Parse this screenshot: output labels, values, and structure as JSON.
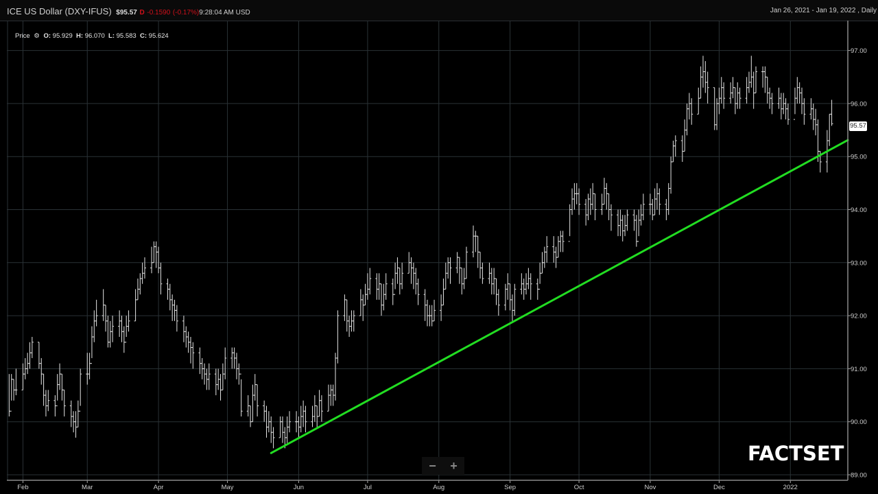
{
  "header": {
    "title": "ICE US Dollar (DXY-IFUS)",
    "last_price": "$95.57",
    "direction_flag": "D",
    "change": "-0.1590",
    "change_pct": "(-0.17%)",
    "time": "9:28:04 AM USD",
    "date_range": "Jan 26, 2021 - Jan 19, 2022 , Daily"
  },
  "legend": {
    "label": "Price",
    "icon": "gear-icon",
    "open_label": "O:",
    "open": "95.929",
    "high_label": "H:",
    "high": "96.070",
    "low_label": "L:",
    "low": "95.583",
    "close_label": "C:",
    "close": "95.624"
  },
  "last_price_label": "95.57",
  "zoom_controls": {
    "minus": "−",
    "plus": "+"
  },
  "logo": "FACTSET",
  "colors": {
    "background": "#000000",
    "bars": "#e6e6e6",
    "grid": "#2a3236",
    "trendline": "#22dd22",
    "negative": "#d0101a"
  },
  "chart_data": {
    "type": "ohlc",
    "title": "ICE US Dollar (DXY-IFUS)",
    "frequency": "Daily",
    "xlim": [
      "2021-01-25",
      "2022-01-26"
    ],
    "ylim": [
      89,
      97.5
    ],
    "grid": true,
    "y_axis_position": "right",
    "y_ticks": [
      "89.00",
      "90.00",
      "91.00",
      "92.00",
      "93.00",
      "94.00",
      "95.00",
      "96.00",
      "97.00"
    ],
    "x_ticks": [
      {
        "label": "Feb",
        "date": "2021-02-01"
      },
      {
        "label": "Mar",
        "date": "2021-03-01"
      },
      {
        "label": "Apr",
        "date": "2021-04-01"
      },
      {
        "label": "May",
        "date": "2021-05-01"
      },
      {
        "label": "Jun",
        "date": "2021-06-01"
      },
      {
        "label": "Jul",
        "date": "2021-07-01"
      },
      {
        "label": "Aug",
        "date": "2021-08-01"
      },
      {
        "label": "Sep",
        "date": "2021-09-01"
      },
      {
        "label": "Oct",
        "date": "2021-10-01"
      },
      {
        "label": "Nov",
        "date": "2021-11-01"
      },
      {
        "label": "Dec",
        "date": "2021-12-01"
      },
      {
        "label": "2022",
        "date": "2022-01-01"
      }
    ],
    "first_bar_date": "2021-01-26",
    "bar_fields": [
      "high",
      "low",
      "close"
    ],
    "bars": [
      [
        90.9,
        90.1,
        90.2
      ],
      [
        90.9,
        90.4,
        90.8
      ],
      [
        90.8,
        90.4,
        90.6
      ],
      [
        91.0,
        90.5,
        90.6
      ],
      [
        91.1,
        90.6,
        90.9
      ],
      [
        91.2,
        90.8,
        91.0
      ],
      [
        91.3,
        90.9,
        91.1
      ],
      [
        91.5,
        91.0,
        91.3
      ],
      [
        91.6,
        91.2,
        91.5
      ],
      [
        91.5,
        91.0,
        91.1
      ],
      [
        91.2,
        90.7,
        90.9
      ],
      [
        90.9,
        90.3,
        90.5
      ],
      [
        90.6,
        90.1,
        90.3
      ],
      [
        90.6,
        90.2,
        90.4
      ],
      [
        90.5,
        90.1,
        90.3
      ],
      [
        90.9,
        90.4,
        90.7
      ],
      [
        91.1,
        90.6,
        90.9
      ],
      [
        90.9,
        90.4,
        90.6
      ],
      [
        90.6,
        90.1,
        90.3
      ],
      [
        90.4,
        89.9,
        90.1
      ],
      [
        90.2,
        89.8,
        90.0
      ],
      [
        90.2,
        89.7,
        89.9
      ],
      [
        90.4,
        89.9,
        90.2
      ],
      [
        91.0,
        90.3,
        90.9
      ],
      [
        91.3,
        90.7,
        90.9
      ],
      [
        91.3,
        90.8,
        91.1
      ],
      [
        91.8,
        91.2,
        91.6
      ],
      [
        92.1,
        91.5,
        91.9
      ],
      [
        92.3,
        91.8,
        92.0
      ],
      [
        92.5,
        91.9,
        92.2
      ],
      [
        92.2,
        91.7,
        91.9
      ],
      [
        92.0,
        91.4,
        91.5
      ],
      [
        91.9,
        91.4,
        91.7
      ],
      [
        92.0,
        91.5,
        91.8
      ],
      [
        92.1,
        91.6,
        91.9
      ],
      [
        92.0,
        91.5,
        91.7
      ],
      [
        91.8,
        91.3,
        91.5
      ],
      [
        92.0,
        91.6,
        91.8
      ],
      [
        92.1,
        91.7,
        91.9
      ],
      [
        92.5,
        91.9,
        92.3
      ],
      [
        92.7,
        92.3,
        92.5
      ],
      [
        92.8,
        92.4,
        92.7
      ],
      [
        93.0,
        92.6,
        92.8
      ],
      [
        93.1,
        92.7,
        92.9
      ],
      [
        93.3,
        92.8,
        93.0
      ],
      [
        93.4,
        93.0,
        93.3
      ],
      [
        93.4,
        92.9,
        93.2
      ],
      [
        93.3,
        92.8,
        92.9
      ],
      [
        93.0,
        92.4,
        92.6
      ],
      [
        92.7,
        92.3,
        92.5
      ],
      [
        92.6,
        92.1,
        92.3
      ],
      [
        92.4,
        91.9,
        92.2
      ],
      [
        92.3,
        91.9,
        92.1
      ],
      [
        92.2,
        91.7,
        91.9
      ],
      [
        92.0,
        91.5,
        91.7
      ],
      [
        91.8,
        91.4,
        91.6
      ],
      [
        91.7,
        91.3,
        91.5
      ],
      [
        91.6,
        91.1,
        91.4
      ],
      [
        91.5,
        91.0,
        91.3
      ],
      [
        91.4,
        90.9,
        91.1
      ],
      [
        91.2,
        90.8,
        91.0
      ],
      [
        91.1,
        90.7,
        90.9
      ],
      [
        91.0,
        90.6,
        90.8
      ],
      [
        91.1,
        90.6,
        90.9
      ],
      [
        91.0,
        90.5,
        90.7
      ],
      [
        91.0,
        90.6,
        90.8
      ],
      [
        90.9,
        90.4,
        90.6
      ],
      [
        91.1,
        90.6,
        90.9
      ],
      [
        91.4,
        90.8,
        91.2
      ],
      [
        91.4,
        91.0,
        91.3
      ],
      [
        91.4,
        91.0,
        91.2
      ],
      [
        91.3,
        90.8,
        91.0
      ],
      [
        91.1,
        90.7,
        90.9
      ],
      [
        90.8,
        90.1,
        90.2
      ],
      [
        90.5,
        90.1,
        90.3
      ],
      [
        90.3,
        89.9,
        90.0
      ],
      [
        90.7,
        90.0,
        90.5
      ],
      [
        90.9,
        90.4,
        90.7
      ],
      [
        90.7,
        90.1,
        90.3
      ],
      [
        90.4,
        90.0,
        90.2
      ],
      [
        90.3,
        89.7,
        89.9
      ],
      [
        90.2,
        89.8,
        90.0
      ],
      [
        90.1,
        89.6,
        89.8
      ],
      [
        89.9,
        89.5,
        89.7
      ],
      [
        90.1,
        89.7,
        90.0
      ],
      [
        90.1,
        89.6,
        89.8
      ],
      [
        89.9,
        89.5,
        89.7
      ],
      [
        90.1,
        89.6,
        89.9
      ],
      [
        90.2,
        89.8,
        90.0
      ],
      [
        90.2,
        89.8,
        90.0
      ],
      [
        90.1,
        89.7,
        89.9
      ],
      [
        90.3,
        89.8,
        90.1
      ],
      [
        90.4,
        89.9,
        90.2
      ],
      [
        90.3,
        89.8,
        90.0
      ],
      [
        90.3,
        89.9,
        90.1
      ],
      [
        90.5,
        90.0,
        90.3
      ],
      [
        90.3,
        89.9,
        90.1
      ],
      [
        90.6,
        90.1,
        90.4
      ],
      [
        90.5,
        90.0,
        90.2
      ],
      [
        90.7,
        90.2,
        90.5
      ],
      [
        90.7,
        90.3,
        90.6
      ],
      [
        90.7,
        90.3,
        90.5
      ],
      [
        91.3,
        90.4,
        91.2
      ],
      [
        92.1,
        91.1,
        92.0
      ],
      [
        92.4,
        91.9,
        92.3
      ],
      [
        92.3,
        91.7,
        91.9
      ],
      [
        92.0,
        91.6,
        91.8
      ],
      [
        92.1,
        91.7,
        91.9
      ],
      [
        92.1,
        91.7,
        92.0
      ],
      [
        92.5,
        92.0,
        92.3
      ],
      [
        92.4,
        91.9,
        92.2
      ],
      [
        92.6,
        92.2,
        92.4
      ],
      [
        92.8,
        92.3,
        92.5
      ],
      [
        92.9,
        92.4,
        92.7
      ],
      [
        92.8,
        92.3,
        92.5
      ],
      [
        92.8,
        92.3,
        92.6
      ],
      [
        92.6,
        92.0,
        92.2
      ],
      [
        92.6,
        92.1,
        92.4
      ],
      [
        92.8,
        92.3,
        92.6
      ],
      [
        92.7,
        92.2,
        92.4
      ],
      [
        93.0,
        92.5,
        92.8
      ],
      [
        93.1,
        92.6,
        92.9
      ],
      [
        92.9,
        92.4,
        92.6
      ],
      [
        93.0,
        92.5,
        92.8
      ],
      [
        93.2,
        92.8,
        93.0
      ],
      [
        93.1,
        92.6,
        92.9
      ],
      [
        93.0,
        92.5,
        92.8
      ],
      [
        92.9,
        92.4,
        92.6
      ],
      [
        92.7,
        92.2,
        92.4
      ],
      [
        92.5,
        91.9,
        92.2
      ],
      [
        92.3,
        91.8,
        92.0
      ],
      [
        92.2,
        91.8,
        92.0
      ],
      [
        92.2,
        91.8,
        91.9
      ],
      [
        92.3,
        91.9,
        92.1
      ],
      [
        92.4,
        91.9,
        92.2
      ],
      [
        92.7,
        92.2,
        92.5
      ],
      [
        93.0,
        92.5,
        92.8
      ],
      [
        93.1,
        92.7,
        93.0
      ],
      [
        93.1,
        92.6,
        92.9
      ],
      [
        93.2,
        92.8,
        93.1
      ],
      [
        93.1,
        92.6,
        92.9
      ],
      [
        92.9,
        92.4,
        92.6
      ],
      [
        92.9,
        92.5,
        92.7
      ],
      [
        93.3,
        92.7,
        93.2
      ],
      [
        93.7,
        93.1,
        93.5
      ],
      [
        93.6,
        93.2,
        93.5
      ],
      [
        93.5,
        92.9,
        93.2
      ],
      [
        93.2,
        92.7,
        92.9
      ],
      [
        93.0,
        92.6,
        92.7
      ],
      [
        93.0,
        92.6,
        92.8
      ],
      [
        92.9,
        92.4,
        92.6
      ],
      [
        92.9,
        92.4,
        92.7
      ],
      [
        92.7,
        92.2,
        92.4
      ],
      [
        92.5,
        92.0,
        92.2
      ],
      [
        92.6,
        92.1,
        92.5
      ],
      [
        92.8,
        92.3,
        92.6
      ],
      [
        92.6,
        92.1,
        92.3
      ],
      [
        92.4,
        91.9,
        92.1
      ],
      [
        92.6,
        92.0,
        92.5
      ],
      [
        92.8,
        92.4,
        92.6
      ],
      [
        92.7,
        92.3,
        92.5
      ],
      [
        92.8,
        92.4,
        92.6
      ],
      [
        92.9,
        92.5,
        92.7
      ],
      [
        92.8,
        92.3,
        92.6
      ],
      [
        92.7,
        92.3,
        92.5
      ],
      [
        93.0,
        92.6,
        92.8
      ],
      [
        93.2,
        92.8,
        93.0
      ],
      [
        93.3,
        92.9,
        93.2
      ],
      [
        93.5,
        93.0,
        93.3
      ],
      [
        93.5,
        93.0,
        93.2
      ],
      [
        93.3,
        92.9,
        93.1
      ],
      [
        93.5,
        93.1,
        93.4
      ],
      [
        93.6,
        93.2,
        93.5
      ],
      [
        93.6,
        93.2,
        93.4
      ],
      [
        94.1,
        93.5,
        94.0
      ],
      [
        94.4,
        93.9,
        94.2
      ],
      [
        94.5,
        94.0,
        94.3
      ],
      [
        94.5,
        94.1,
        94.3
      ],
      [
        94.4,
        93.9,
        94.1
      ],
      [
        94.2,
        93.7,
        93.9
      ],
      [
        94.3,
        93.8,
        94.2
      ],
      [
        94.4,
        93.9,
        94.1
      ],
      [
        94.5,
        94.0,
        94.3
      ],
      [
        94.3,
        93.8,
        94.0
      ],
      [
        94.3,
        93.9,
        94.1
      ],
      [
        94.6,
        94.1,
        94.4
      ],
      [
        94.5,
        94.0,
        94.3
      ],
      [
        94.3,
        93.8,
        94.0
      ],
      [
        94.1,
        93.6,
        93.9
      ],
      [
        94.0,
        93.5,
        93.7
      ],
      [
        94.0,
        93.5,
        93.8
      ],
      [
        93.9,
        93.4,
        93.6
      ],
      [
        93.9,
        93.5,
        93.7
      ],
      [
        94.0,
        93.6,
        93.9
      ],
      [
        94.0,
        93.6,
        93.8
      ],
      [
        93.9,
        93.3,
        93.4
      ],
      [
        94.0,
        93.5,
        93.8
      ],
      [
        94.1,
        93.7,
        93.9
      ],
      [
        94.3,
        93.8,
        94.1
      ],
      [
        94.3,
        93.9,
        94.1
      ],
      [
        94.2,
        93.8,
        93.9
      ],
      [
        94.4,
        93.9,
        94.2
      ],
      [
        94.5,
        94.0,
        94.3
      ],
      [
        94.4,
        93.9,
        94.1
      ],
      [
        94.2,
        93.8,
        94.0
      ],
      [
        94.5,
        93.9,
        94.4
      ],
      [
        95.0,
        94.3,
        94.9
      ],
      [
        95.3,
        94.9,
        95.2
      ],
      [
        95.4,
        95.0,
        95.3
      ],
      [
        95.4,
        94.9,
        95.1
      ],
      [
        95.7,
        95.1,
        95.5
      ],
      [
        96.0,
        95.4,
        95.9
      ],
      [
        96.2,
        95.7,
        96.0
      ],
      [
        96.1,
        95.6,
        95.8
      ],
      [
        96.3,
        95.8,
        96.1
      ],
      [
        96.7,
        96.1,
        96.5
      ],
      [
        96.9,
        96.3,
        96.6
      ],
      [
        96.8,
        96.2,
        96.4
      ],
      [
        96.6,
        96.0,
        96.3
      ],
      [
        96.3,
        95.5,
        95.6
      ],
      [
        96.1,
        95.5,
        96.0
      ],
      [
        96.3,
        95.8,
        96.1
      ],
      [
        96.5,
        96.0,
        96.3
      ],
      [
        96.4,
        95.9,
        96.1
      ],
      [
        96.4,
        96.0,
        96.2
      ],
      [
        96.5,
        96.1,
        96.3
      ],
      [
        96.3,
        95.8,
        96.0
      ],
      [
        96.4,
        95.9,
        96.2
      ],
      [
        96.3,
        95.9,
        96.1
      ],
      [
        96.5,
        96.0,
        96.3
      ],
      [
        96.6,
        96.2,
        96.4
      ],
      [
        96.9,
        96.3,
        96.5
      ],
      [
        96.6,
        95.9,
        96.2
      ],
      [
        96.7,
        96.2,
        96.6
      ],
      [
        96.7,
        96.3,
        96.6
      ],
      [
        96.7,
        96.2,
        96.5
      ],
      [
        96.5,
        96.0,
        96.2
      ],
      [
        96.3,
        95.9,
        96.1
      ],
      [
        96.2,
        95.8,
        96.0
      ],
      [
        96.3,
        95.9,
        96.1
      ],
      [
        96.2,
        95.7,
        95.9
      ],
      [
        96.2,
        95.8,
        96.0
      ],
      [
        96.1,
        95.7,
        95.9
      ],
      [
        96.0,
        95.6,
        95.7
      ],
      [
        96.3,
        95.8,
        96.1
      ],
      [
        96.5,
        96.0,
        96.3
      ],
      [
        96.4,
        96.0,
        96.2
      ],
      [
        96.3,
        95.8,
        96.0
      ],
      [
        96.1,
        95.6,
        95.8
      ],
      [
        96.1,
        95.7,
        95.9
      ],
      [
        96.0,
        95.5,
        95.7
      ],
      [
        95.9,
        95.4,
        95.6
      ],
      [
        95.7,
        94.9,
        95.1
      ],
      [
        95.1,
        94.7,
        94.9
      ],
      [
        95.5,
        94.7,
        95.3
      ],
      [
        95.8,
        95.2,
        95.8
      ],
      [
        96.07,
        95.58,
        95.62
      ]
    ],
    "annotations": [
      {
        "type": "trendline",
        "from": [
          "2021-05-20",
          89.41
        ],
        "to": [
          "2022-01-26",
          95.31
        ]
      }
    ]
  }
}
